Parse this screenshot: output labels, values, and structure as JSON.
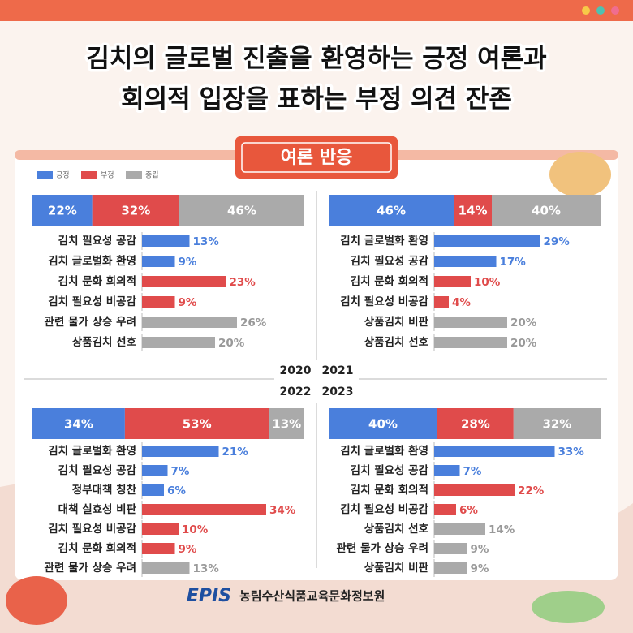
{
  "header": {
    "title": [
      "김치의 글로벌 진출을 환영하는 긍정 여론과",
      "회의적 입장을 표하는 부정 의견 잔존"
    ],
    "badge": "여론 반응"
  },
  "legend": [
    {
      "name": "긍정",
      "color": "#4a7fdc"
    },
    {
      "name": "부정",
      "color": "#e04b4b"
    },
    {
      "name": "중립",
      "color": "#aaaaaa"
    }
  ],
  "panels": [
    {
      "year": "2020",
      "share": {
        "values": [
          22,
          32,
          46
        ],
        "value_labels": [
          "22%",
          "32%",
          "46%"
        ]
      },
      "items": {
        "categories": [
          "김치 필요성 공감",
          "김치 글로벌화 환영",
          "김치 문화 회의적",
          "김치 필요성 비공감",
          "관련 물가 상승 우려",
          "상품김치 선호"
        ],
        "values": [
          13,
          9,
          23,
          9,
          26,
          20
        ],
        "value_labels": [
          "13%",
          "9%",
          "23%",
          "9%",
          "26%",
          "20%"
        ],
        "colors": [
          "#4a7fdc",
          "#4a7fdc",
          "#e04b4b",
          "#e04b4b",
          "#aaaaaa",
          "#aaaaaa"
        ]
      }
    },
    {
      "year": "2021",
      "share": {
        "values": [
          46,
          14,
          40
        ],
        "value_labels": [
          "46%",
          "14%",
          "40%"
        ]
      },
      "items": {
        "categories": [
          "김치 글로벌화 환영",
          "김치 필요성 공감",
          "김치 문화 회의적",
          "김치 필요성 비공감",
          "상품김치 비판",
          "상품김치 선호"
        ],
        "values": [
          29,
          17,
          10,
          4,
          20,
          20
        ],
        "value_labels": [
          "29%",
          "17%",
          "10%",
          "4%",
          "20%",
          "20%"
        ],
        "colors": [
          "#4a7fdc",
          "#4a7fdc",
          "#e04b4b",
          "#e04b4b",
          "#aaaaaa",
          "#aaaaaa"
        ]
      }
    },
    {
      "year": "2022",
      "share": {
        "values": [
          34,
          53,
          13
        ],
        "value_labels": [
          "34%",
          "53%",
          "13%"
        ]
      },
      "items": {
        "categories": [
          "김치 글로벌화 환영",
          "김치 필요성 공감",
          "정부대책 칭찬",
          "대책 실효성 비판",
          "김치 필요성 비공감",
          "김치 문화 회의적",
          "관련 물가 상승 우려"
        ],
        "values": [
          21,
          7,
          6,
          34,
          10,
          9,
          13
        ],
        "value_labels": [
          "21%",
          "7%",
          "6%",
          "34%",
          "10%",
          "9%",
          "13%"
        ],
        "colors": [
          "#4a7fdc",
          "#4a7fdc",
          "#4a7fdc",
          "#e04b4b",
          "#e04b4b",
          "#e04b4b",
          "#aaaaaa"
        ]
      }
    },
    {
      "year": "2023",
      "share": {
        "values": [
          40,
          28,
          32
        ],
        "value_labels": [
          "40%",
          "28%",
          "32%"
        ]
      },
      "items": {
        "categories": [
          "김치 글로벌화 환영",
          "김치 필요성 공감",
          "김치 문화 회의적",
          "김치 필요성 비공감",
          "상품김치 선호",
          "관련 물가 상승 우려",
          "상품김치 비판"
        ],
        "values": [
          33,
          7,
          22,
          6,
          14,
          9,
          9
        ],
        "value_labels": [
          "33%",
          "7%",
          "22%",
          "6%",
          "14%",
          "9%",
          "9%"
        ],
        "colors": [
          "#4a7fdc",
          "#4a7fdc",
          "#e04b4b",
          "#e04b4b",
          "#aaaaaa",
          "#aaaaaa",
          "#aaaaaa"
        ]
      }
    }
  ],
  "footer": {
    "logo": "EPIS",
    "org": "농림수산식품교육문화정보원"
  }
}
